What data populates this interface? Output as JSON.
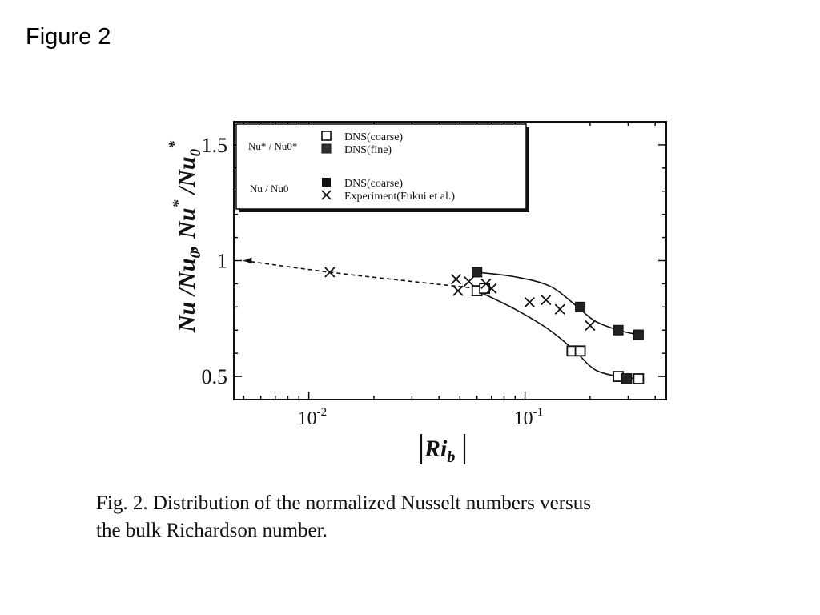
{
  "slide": {
    "title": "Figure 2",
    "caption_lines": [
      "Fig.  2. Distribution of the normalized Nusselt numbers versus",
      "the bulk Richardson number."
    ]
  },
  "chart_data": {
    "type": "scatter",
    "x_scale": "log",
    "xlim": [
      0.0045,
      0.45
    ],
    "ylim": [
      0.4,
      1.6
    ],
    "xlabel": "|Ri_b|",
    "ylabel": "Nu /Nu0, Nu* /Nu0*",
    "x_tick_labels": [
      {
        "base": "10",
        "exp": "-2",
        "value": 0.01
      },
      {
        "base": "10",
        "exp": "-1",
        "value": 0.1
      }
    ],
    "y_tick_labels": [
      {
        "label": "0.5",
        "value": 0.5
      },
      {
        "label": "1",
        "value": 1.0
      },
      {
        "label": "1.5",
        "value": 1.5
      }
    ],
    "legend": {
      "placement": "top-left",
      "groups": [
        {
          "label": "Nu* / Nu0*",
          "entries": [
            {
              "marker": "open-square",
              "label": "DNS(coarse)"
            },
            {
              "marker": "filled-square",
              "label": "DNS(fine)"
            }
          ]
        },
        {
          "label": "Nu / Nu0",
          "entries": [
            {
              "marker": "filled-square",
              "label": "DNS(coarse)"
            },
            {
              "marker": "cross",
              "label": "Experiment(Fukui et al.)"
            }
          ]
        }
      ]
    },
    "series": [
      {
        "name": "DNS(coarse)",
        "group": "Nu* / Nu0*",
        "marker": "open-square",
        "x": [
          0.06,
          0.065,
          0.165,
          0.18,
          0.27,
          0.295,
          0.335
        ],
        "y": [
          0.87,
          0.88,
          0.61,
          0.61,
          0.5,
          0.49,
          0.49
        ]
      },
      {
        "name": "DNS(fine)",
        "group": "Nu* / Nu0*",
        "marker": "filled-square",
        "x": [
          0.295
        ],
        "y": [
          0.49
        ]
      },
      {
        "name": "DNS(coarse)",
        "group": "Nu / Nu0",
        "marker": "filled-square",
        "x": [
          0.06,
          0.18,
          0.27,
          0.335
        ],
        "y": [
          0.95,
          0.8,
          0.7,
          0.68
        ]
      },
      {
        "name": "Experiment(Fukui et al.)",
        "group": "Nu / Nu0",
        "marker": "cross",
        "x": [
          0.0125,
          0.048,
          0.049,
          0.055,
          0.066,
          0.07,
          0.105,
          0.125,
          0.145,
          0.2
        ],
        "y": [
          0.95,
          0.92,
          0.87,
          0.91,
          0.9,
          0.88,
          0.82,
          0.83,
          0.79,
          0.72
        ]
      }
    ],
    "curves": [
      {
        "style": "dashed",
        "x": [
          0.005,
          0.0125,
          0.03,
          0.06
        ],
        "y": [
          1.0,
          0.95,
          0.91,
          0.88
        ]
      },
      {
        "style": "solid",
        "x": [
          0.06,
          0.09,
          0.13,
          0.17,
          0.21,
          0.27,
          0.335
        ],
        "y": [
          0.87,
          0.79,
          0.7,
          0.61,
          0.53,
          0.5,
          0.49
        ]
      },
      {
        "style": "solid",
        "x": [
          0.06,
          0.09,
          0.13,
          0.17,
          0.21,
          0.27,
          0.335
        ],
        "y": [
          0.95,
          0.93,
          0.89,
          0.81,
          0.74,
          0.7,
          0.68
        ]
      }
    ]
  }
}
